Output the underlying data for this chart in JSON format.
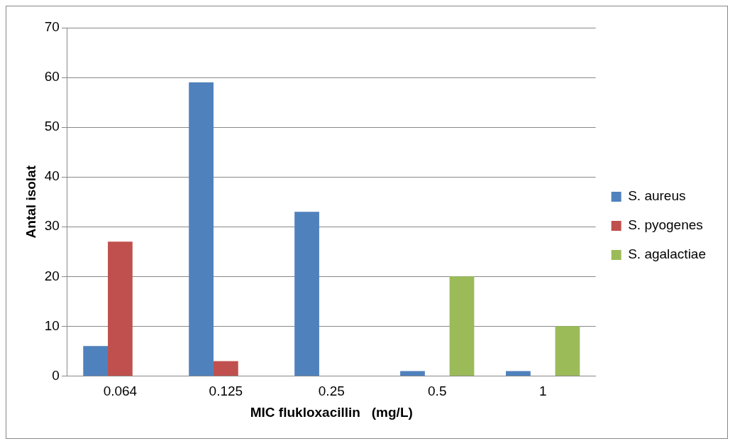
{
  "chart_data": {
    "type": "bar",
    "xlabel": "MIC flukloxacillin   (mg/L)",
    "ylabel": "Antal isolat",
    "categories": [
      "0.064",
      "0.125",
      "0.25",
      "0.5",
      "1"
    ],
    "series": [
      {
        "name": "S. aureus",
        "color": "#4f81bd",
        "values": [
          6,
          59,
          33,
          1,
          1
        ]
      },
      {
        "name": "S. pyogenes",
        "color": "#c0504d",
        "values": [
          27,
          3,
          0,
          0,
          0
        ]
      },
      {
        "name": "S. agalactiae",
        "color": "#9bbb59",
        "values": [
          0,
          0,
          0,
          20,
          10
        ]
      }
    ],
    "ylim": [
      0,
      70
    ],
    "yticks": [
      0,
      10,
      20,
      30,
      40,
      50,
      60,
      70
    ],
    "grid": "y",
    "legend": "right"
  }
}
